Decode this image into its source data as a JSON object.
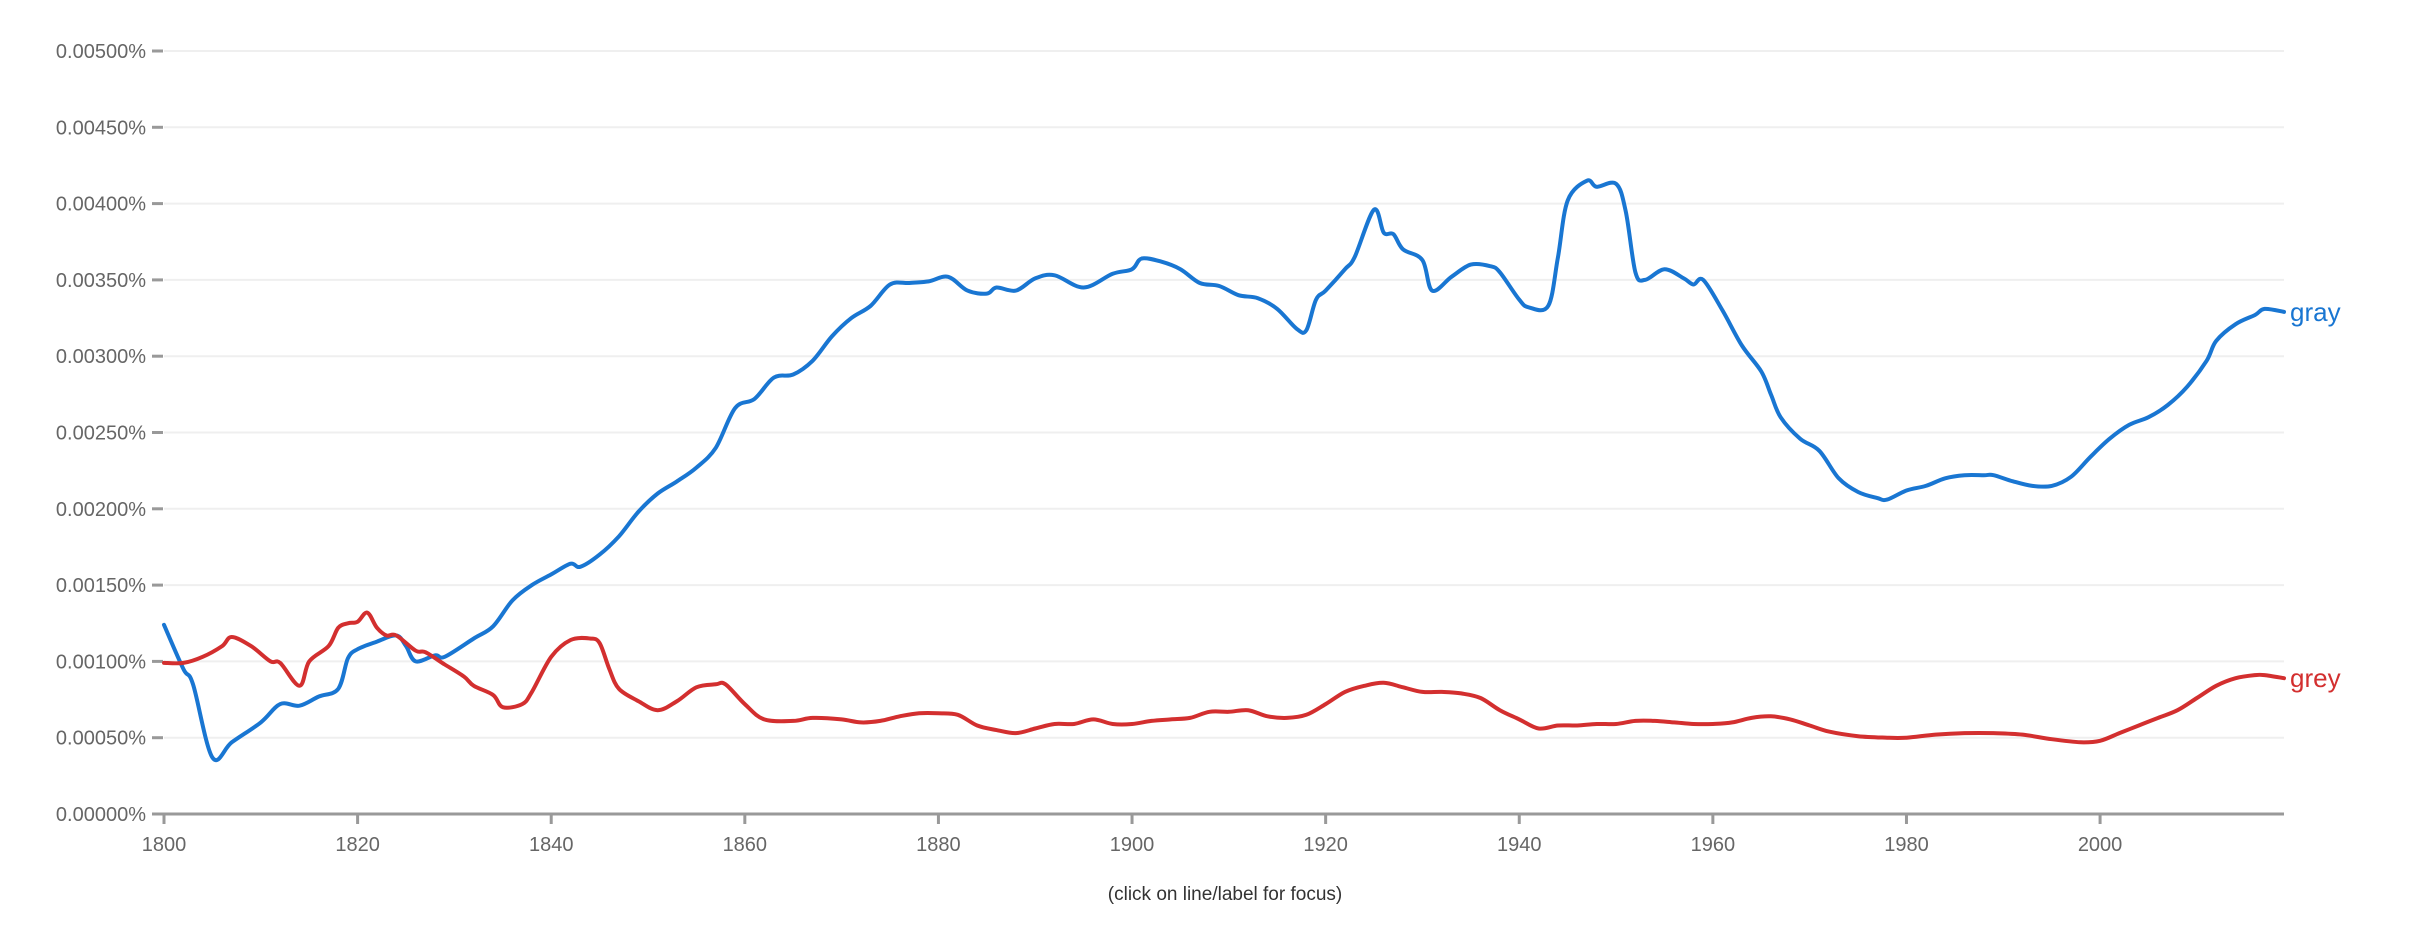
{
  "chart_data": {
    "type": "line",
    "title": "",
    "xlabel": "",
    "ylabel": "",
    "xlim": [
      1800,
      2019
    ],
    "ylim": [
      0,
      0.005
    ],
    "y_unit": "%",
    "grid": true,
    "legend": "inline-right-end-labels",
    "x_ticks": [
      "1800",
      "1820",
      "1840",
      "1860",
      "1880",
      "1900",
      "1920",
      "1940",
      "1960",
      "1980",
      "2000"
    ],
    "y_ticks": [
      "0.00000%",
      "0.00050%",
      "0.00100%",
      "0.00150%",
      "0.00200%",
      "0.00250%",
      "0.00300%",
      "0.00350%",
      "0.00400%",
      "0.00450%",
      "0.00500%"
    ],
    "series": [
      {
        "name": "gray",
        "color": "#1976d2",
        "x": [
          1800,
          1802,
          1803,
          1805,
          1807,
          1810,
          1812,
          1814,
          1816,
          1818,
          1819,
          1820,
          1822,
          1824,
          1825,
          1826,
          1828,
          1829,
          1832,
          1834,
          1836,
          1838,
          1840,
          1842,
          1843,
          1845,
          1847,
          1849,
          1851,
          1853,
          1855,
          1857,
          1859,
          1861,
          1863,
          1865,
          1867,
          1869,
          1871,
          1873,
          1875,
          1877,
          1879,
          1881,
          1883,
          1885,
          1886,
          1888,
          1890,
          1892,
          1895,
          1898,
          1900,
          1901,
          1903,
          1905,
          1907,
          1909,
          1911,
          1913,
          1915,
          1917,
          1918,
          1919,
          1920,
          1922,
          1923,
          1925,
          1926,
          1927,
          1928,
          1930,
          1931,
          1933,
          1935,
          1937,
          1938,
          1940,
          1941,
          1943,
          1944,
          1945,
          1947,
          1948,
          1950,
          1951,
          1952,
          1953,
          1955,
          1957,
          1958,
          1959,
          1961,
          1963,
          1965,
          1966,
          1967,
          1969,
          1971,
          1973,
          1975,
          1977,
          1978,
          1980,
          1982,
          1984,
          1986,
          1988,
          1989,
          1991,
          1993,
          1995,
          1997,
          1999,
          2001,
          2003,
          2005,
          2007,
          2009,
          2011,
          2012,
          2014,
          2016,
          2017,
          2019
        ],
        "y": [
          0.00124,
          0.00095,
          0.00085,
          0.00037,
          0.00047,
          0.0006,
          0.00072,
          0.00071,
          0.00077,
          0.00082,
          0.00102,
          0.00108,
          0.00113,
          0.00117,
          0.0011,
          0.001,
          0.00104,
          0.00103,
          0.00115,
          0.00123,
          0.0014,
          0.0015,
          0.00157,
          0.00164,
          0.00162,
          0.0017,
          0.00182,
          0.00198,
          0.0021,
          0.00218,
          0.00227,
          0.0024,
          0.00266,
          0.00272,
          0.00286,
          0.00288,
          0.00297,
          0.00313,
          0.00325,
          0.00333,
          0.00347,
          0.00348,
          0.00349,
          0.00352,
          0.00343,
          0.00341,
          0.00345,
          0.00343,
          0.00351,
          0.00353,
          0.00345,
          0.00354,
          0.00357,
          0.00364,
          0.00362,
          0.00357,
          0.00348,
          0.00346,
          0.0034,
          0.00338,
          0.00331,
          0.00318,
          0.00317,
          0.00337,
          0.00343,
          0.00357,
          0.00365,
          0.00396,
          0.00381,
          0.0038,
          0.0037,
          0.00363,
          0.00343,
          0.00352,
          0.0036,
          0.00359,
          0.00355,
          0.00337,
          0.00332,
          0.00333,
          0.00365,
          0.00402,
          0.00415,
          0.00411,
          0.00413,
          0.00395,
          0.00355,
          0.0035,
          0.00357,
          0.00351,
          0.00347,
          0.0035,
          0.0033,
          0.00307,
          0.0029,
          0.00275,
          0.0026,
          0.00246,
          0.00238,
          0.0022,
          0.00211,
          0.00207,
          0.00206,
          0.00212,
          0.00215,
          0.0022,
          0.00222,
          0.00222,
          0.00222,
          0.00218,
          0.00215,
          0.00215,
          0.00221,
          0.00234,
          0.00246,
          0.00255,
          0.0026,
          0.00268,
          0.0028,
          0.00297,
          0.0031,
          0.00321,
          0.00327,
          0.00331,
          0.00329
        ]
      },
      {
        "name": "grey",
        "color": "#d32f2f",
        "x": [
          1800,
          1802,
          1804,
          1806,
          1807,
          1809,
          1811,
          1812,
          1814,
          1815,
          1817,
          1818,
          1819,
          1820,
          1821,
          1822,
          1823,
          1824,
          1826,
          1827,
          1829,
          1831,
          1832,
          1834,
          1835,
          1837,
          1838,
          1840,
          1842,
          1844,
          1845,
          1846,
          1847,
          1849,
          1851,
          1853,
          1855,
          1857,
          1858,
          1860,
          1862,
          1865,
          1867,
          1870,
          1872,
          1874,
          1876,
          1878,
          1880,
          1882,
          1884,
          1886,
          1888,
          1890,
          1892,
          1894,
          1896,
          1898,
          1900,
          1902,
          1904,
          1906,
          1908,
          1910,
          1912,
          1914,
          1916,
          1918,
          1920,
          1922,
          1924,
          1926,
          1928,
          1930,
          1932,
          1934,
          1936,
          1938,
          1940,
          1942,
          1944,
          1946,
          1948,
          1950,
          1952,
          1954,
          1956,
          1958,
          1960,
          1962,
          1964,
          1966,
          1968,
          1970,
          1972,
          1975,
          1978,
          1980,
          1983,
          1986,
          1989,
          1992,
          1995,
          1998,
          2000,
          2002,
          2004,
          2006,
          2008,
          2010,
          2012,
          2014,
          2016,
          2017,
          2019
        ],
        "y": [
          0.00099,
          0.00099,
          0.00103,
          0.0011,
          0.00116,
          0.0011,
          0.001,
          0.00099,
          0.00084,
          0.001,
          0.0011,
          0.00122,
          0.00125,
          0.00126,
          0.00132,
          0.00122,
          0.00117,
          0.00117,
          0.00107,
          0.00106,
          0.00098,
          0.0009,
          0.00084,
          0.00078,
          0.0007,
          0.00072,
          0.0008,
          0.00103,
          0.00114,
          0.00115,
          0.00112,
          0.00095,
          0.00082,
          0.00074,
          0.00068,
          0.00074,
          0.00083,
          0.00085,
          0.00085,
          0.00072,
          0.00062,
          0.00061,
          0.00063,
          0.00062,
          0.0006,
          0.00061,
          0.00064,
          0.00066,
          0.00066,
          0.00065,
          0.00058,
          0.00055,
          0.00053,
          0.00056,
          0.00059,
          0.00059,
          0.00062,
          0.00059,
          0.00059,
          0.00061,
          0.00062,
          0.00063,
          0.00067,
          0.00067,
          0.00068,
          0.00064,
          0.00063,
          0.00065,
          0.00072,
          0.0008,
          0.00084,
          0.00086,
          0.00083,
          0.0008,
          0.0008,
          0.00079,
          0.00076,
          0.00068,
          0.00062,
          0.00056,
          0.00058,
          0.00058,
          0.00059,
          0.00059,
          0.00061,
          0.00061,
          0.0006,
          0.00059,
          0.00059,
          0.0006,
          0.00063,
          0.00064,
          0.00062,
          0.00058,
          0.00054,
          0.00051,
          0.0005,
          0.0005,
          0.00052,
          0.00053,
          0.00053,
          0.00052,
          0.00049,
          0.00047,
          0.00048,
          0.00053,
          0.00058,
          0.00063,
          0.00068,
          0.00076,
          0.00084,
          0.00089,
          0.00091,
          0.00091,
          0.00089
        ]
      }
    ]
  },
  "footer": {
    "hint": "(click on line/label for focus)"
  }
}
